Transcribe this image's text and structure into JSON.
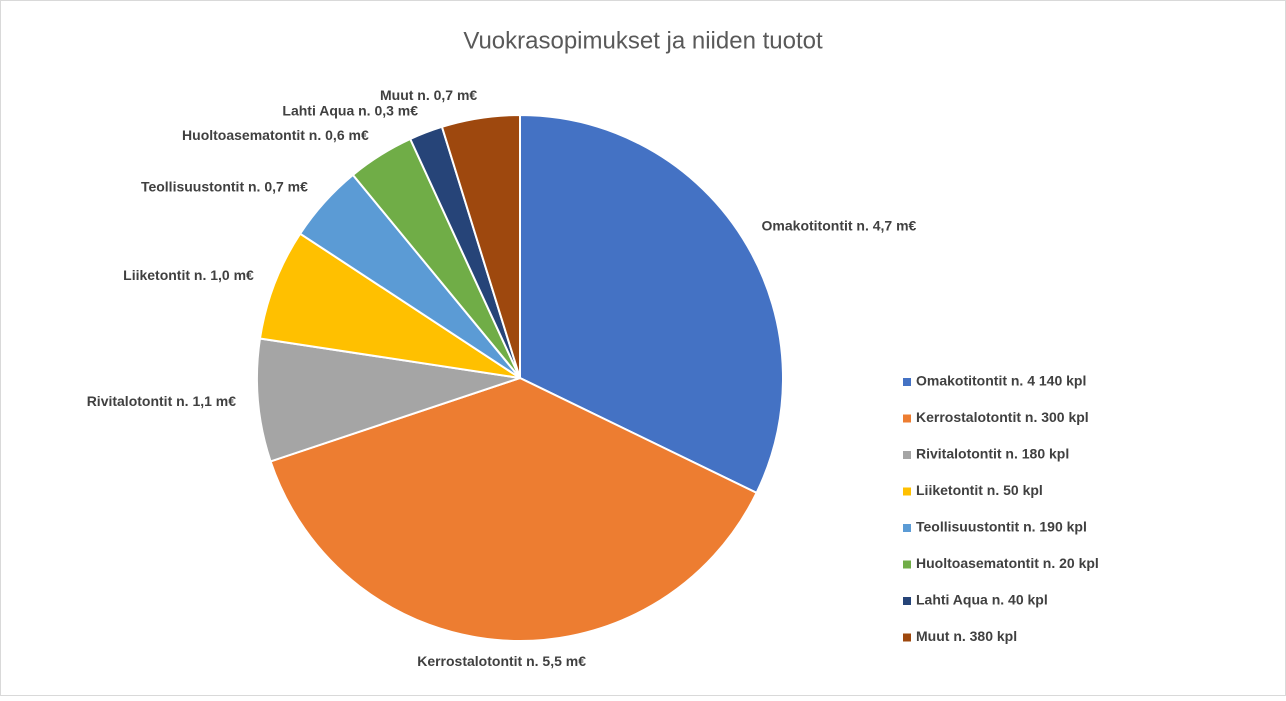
{
  "chart_data": {
    "type": "pie",
    "title": "Vuokrasopimukset ja niiden tuotot",
    "categories": [
      "Omakotitontit n. 4 140 kpl",
      "Kerrostalotontit  n. 300 kpl",
      "Rivitalotontit n. 180 kpl",
      "Liiketontit n. 50 kpl",
      "Teollisuustontit n. 190 kpl",
      "Huoltoasematontit n. 20 kpl",
      "Lahti Aqua n. 40 kpl",
      "Muut n. 380 kpl"
    ],
    "values": [
      4.7,
      5.5,
      1.1,
      1.0,
      0.7,
      0.6,
      0.3,
      0.7
    ],
    "value_labels": [
      "Omakotitontit n. 4,7 m€",
      "Kerrostalotontit n. 5,5 m€",
      "Rivitalotontit n. 1,1 m€",
      "Liiketontit n. 1,0 m€",
      "Teollisuustontit n. 0,7 m€",
      "Huoltoasematontit n. 0,6 m€",
      "Lahti Aqua n. 0,3 m€",
      "Muut n. 0,7 m€"
    ],
    "colors": [
      "#4472c4",
      "#ed7d31",
      "#a5a5a5",
      "#ffc000",
      "#5b9bd5",
      "#70ad47",
      "#264478",
      "#9e480e"
    ],
    "legend": "right"
  }
}
